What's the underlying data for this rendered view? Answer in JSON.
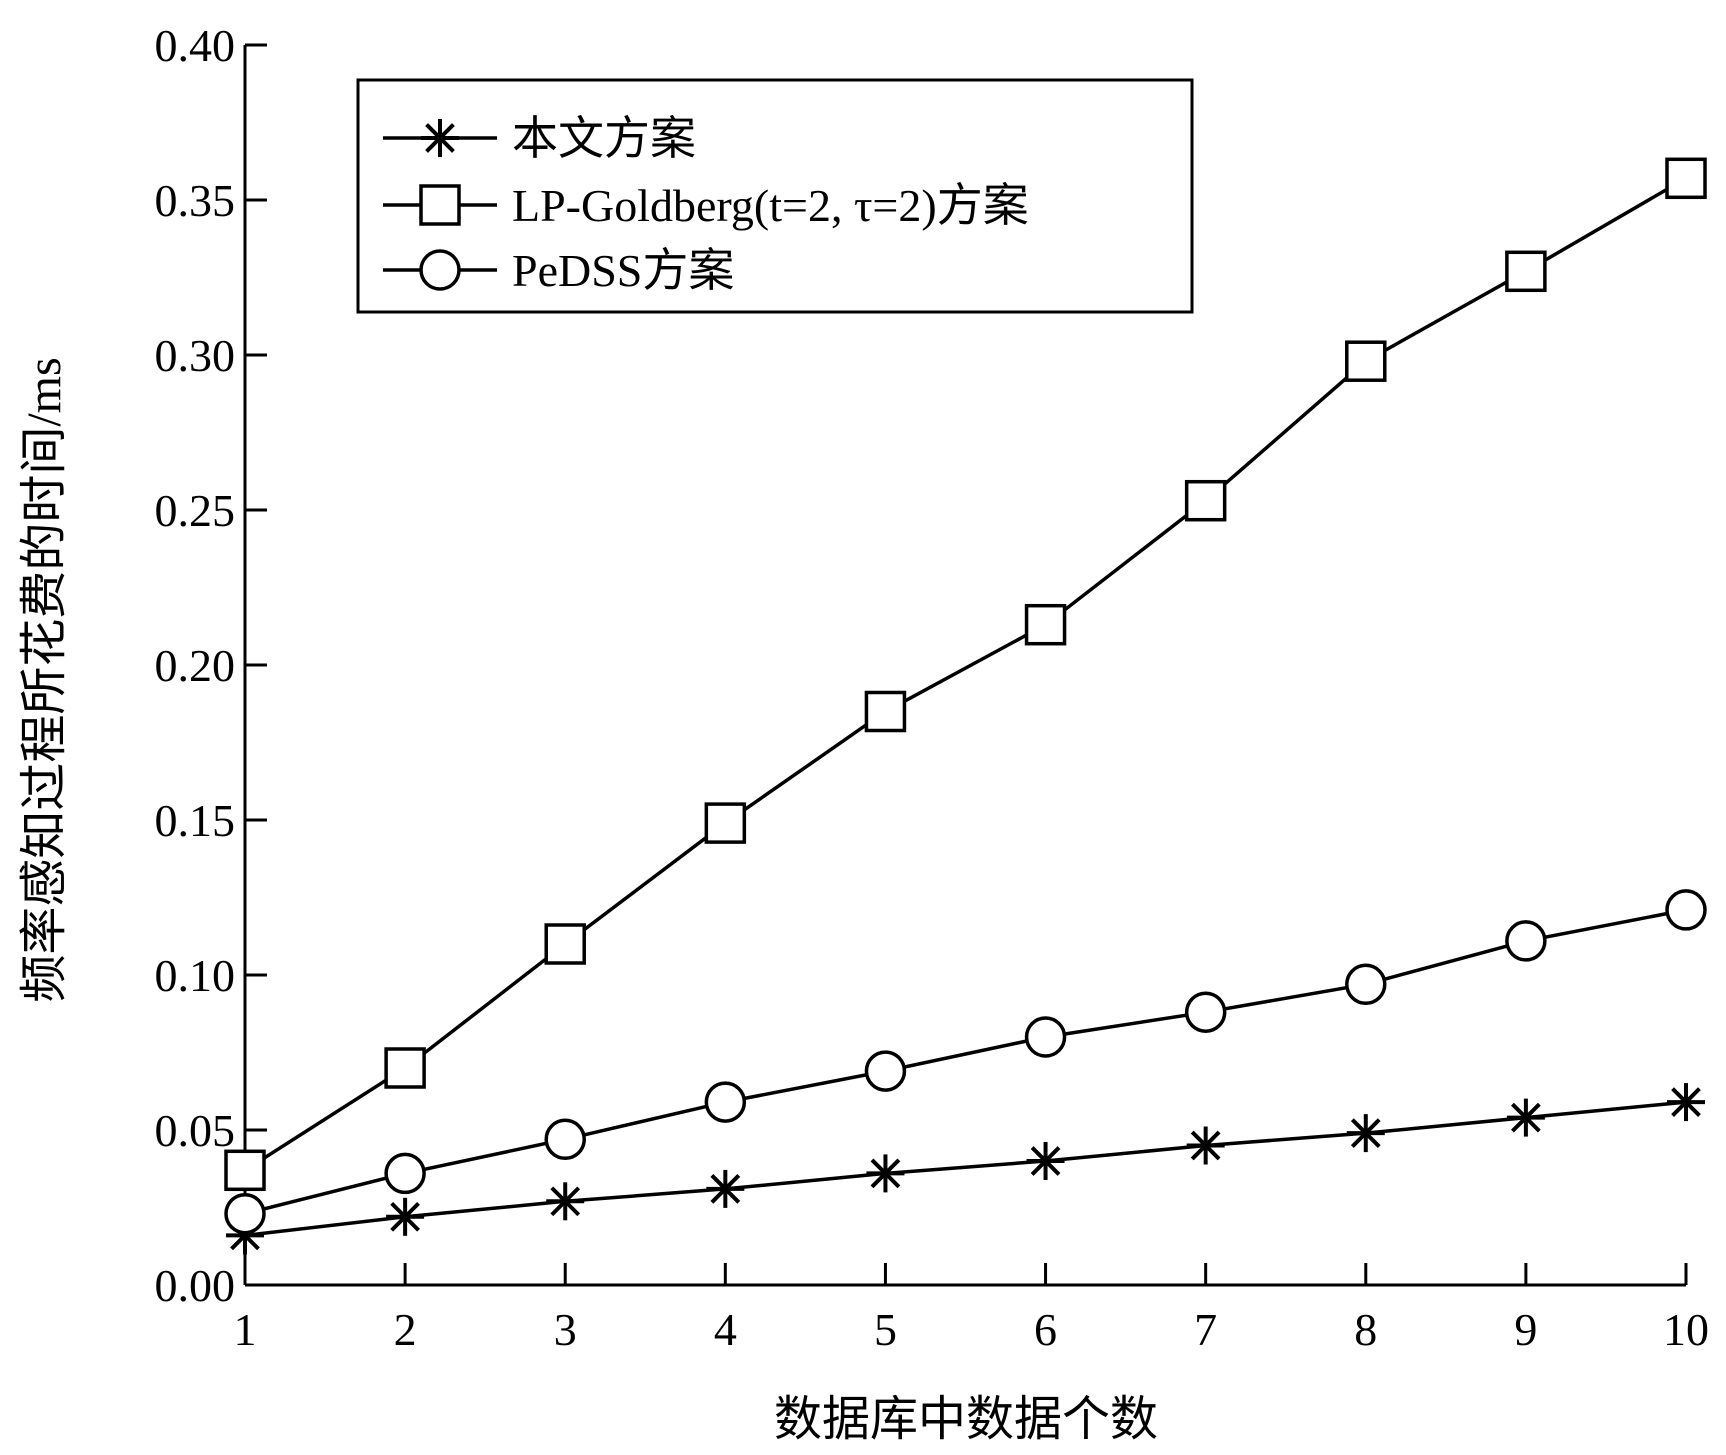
{
  "chart_data": {
    "type": "line",
    "xlabel": "数据库中数据个数",
    "ylabel": "频率感知过程所花费的时间/ms",
    "x": [
      1,
      2,
      3,
      4,
      5,
      6,
      7,
      8,
      9,
      10
    ],
    "xlim": [
      1,
      10
    ],
    "ylim": [
      0,
      0.4
    ],
    "yticks": [
      "0.00",
      "0.05",
      "0.10",
      "0.15",
      "0.20",
      "0.25",
      "0.30",
      "0.35",
      "0.40"
    ],
    "xticks": [
      "1",
      "2",
      "3",
      "4",
      "5",
      "6",
      "7",
      "8",
      "9",
      "10"
    ],
    "grid": false,
    "legend_position": "top-left",
    "series": [
      {
        "name": "本文方案",
        "marker": "star",
        "values": [
          0.016,
          0.022,
          0.027,
          0.031,
          0.036,
          0.04,
          0.045,
          0.049,
          0.054,
          0.059
        ]
      },
      {
        "name": "LP-Goldberg(t=2, τ=2)方案",
        "marker": "square",
        "values": [
          0.037,
          0.07,
          0.11,
          0.149,
          0.185,
          0.213,
          0.253,
          0.298,
          0.327,
          0.357
        ]
      },
      {
        "name": "PeDSS方案",
        "marker": "circle",
        "values": [
          0.023,
          0.036,
          0.047,
          0.059,
          0.069,
          0.08,
          0.088,
          0.097,
          0.111,
          0.121
        ]
      }
    ]
  }
}
